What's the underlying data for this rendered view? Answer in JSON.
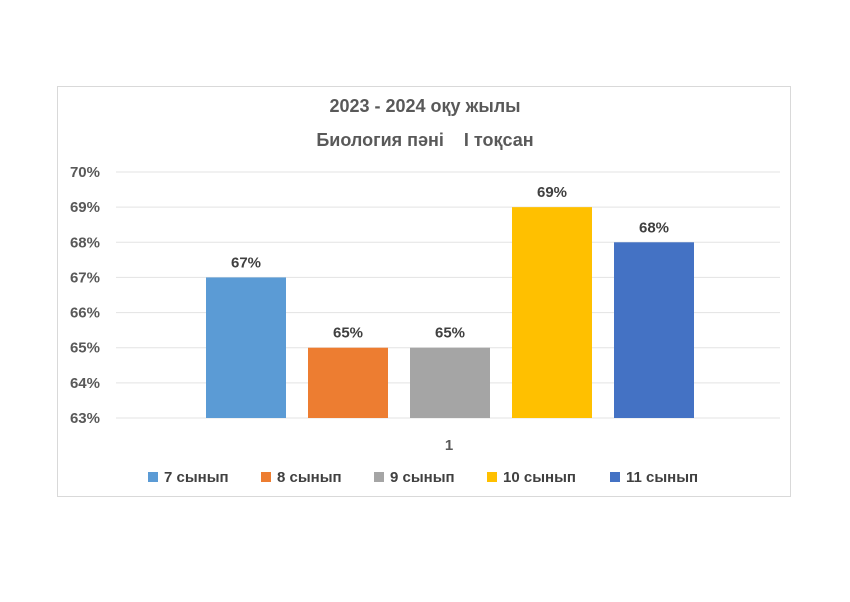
{
  "chart_data": {
    "type": "bar",
    "title": "2023 - 2024 оқу жылы",
    "subtitle": "Биология пәні    І тоқсан",
    "categories": [
      "1"
    ],
    "series": [
      {
        "name": "7 сынып",
        "values": [
          67
        ],
        "color": "#5B9BD5"
      },
      {
        "name": "8 сынып",
        "values": [
          65
        ],
        "color": "#ED7D31"
      },
      {
        "name": "9 сынып",
        "values": [
          65
        ],
        "color": "#A5A5A5"
      },
      {
        "name": "10 сынып",
        "values": [
          69
        ],
        "color": "#FFC000"
      },
      {
        "name": "11 сынып",
        "values": [
          68
        ],
        "color": "#4472C4"
      }
    ],
    "data_labels": [
      "67%",
      "65%",
      "65%",
      "69%",
      "68%"
    ],
    "y_ticks": [
      "63%",
      "64%",
      "65%",
      "66%",
      "67%",
      "68%",
      "69%",
      "70%"
    ],
    "ylim": [
      63,
      70
    ],
    "grid": true,
    "legend_position": "bottom"
  }
}
